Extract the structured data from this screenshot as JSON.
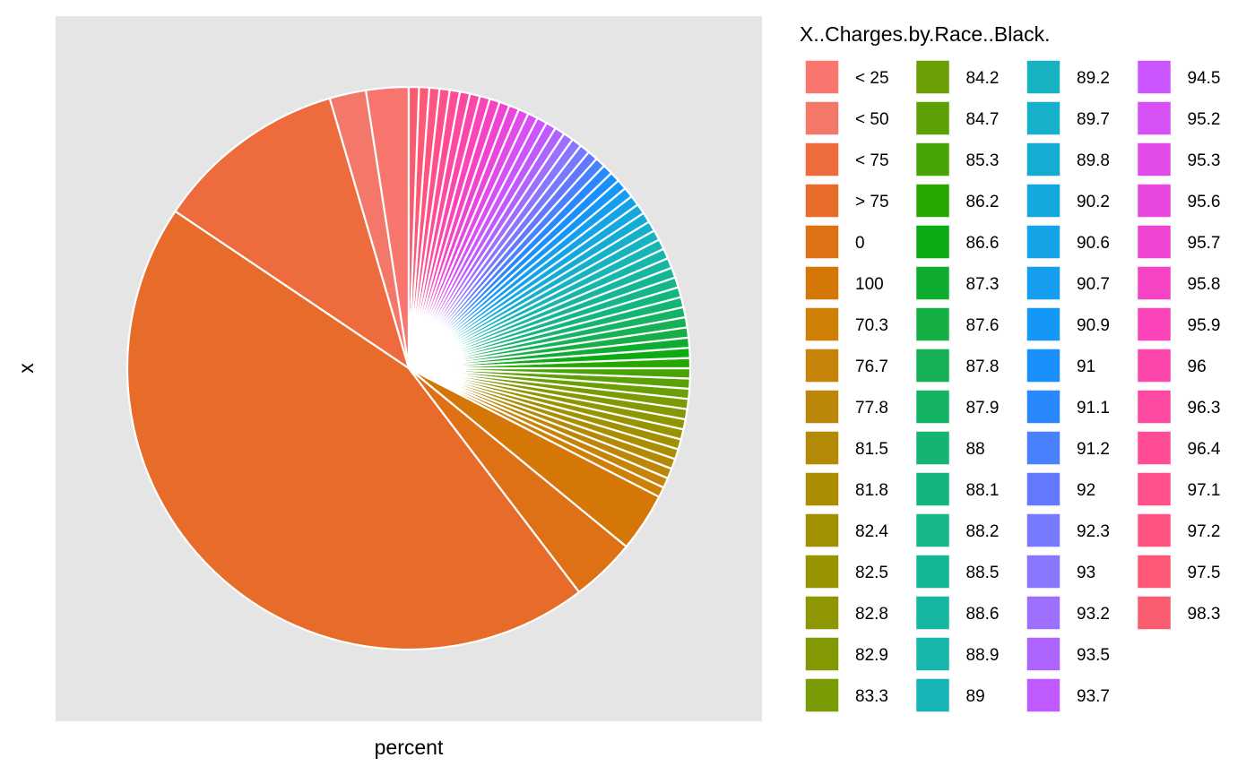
{
  "chart_data": {
    "type": "pie",
    "title": "",
    "xlabel": "percent",
    "ylabel": "x",
    "legend_title": "X..Charges.by.Race..Black.",
    "legend_position": "right",
    "grid": false,
    "panel_background": "#E5E5E5",
    "slice_border": "#FFFFFF",
    "slices": [
      {
        "label": "< 25",
        "value": 2.1,
        "color": "#F8766D"
      },
      {
        "label": "< 50",
        "value": 1.8,
        "color": "#F3786A"
      },
      {
        "label": "< 75",
        "value": 9.5,
        "color": "#EE6B3E"
      },
      {
        "label": "> 75",
        "value": 38.5,
        "color": "#E76C29"
      },
      {
        "label": "0",
        "value": 3.2,
        "color": "#DE7016"
      },
      {
        "label": "100",
        "value": 2.9,
        "color": "#D57707"
      },
      {
        "label": "70.3",
        "value": 0.5,
        "color": "#CE7F05"
      },
      {
        "label": "76.7",
        "value": 0.5,
        "color": "#C58307"
      },
      {
        "label": "77.8",
        "value": 0.5,
        "color": "#BC8608"
      },
      {
        "label": "81.5",
        "value": 0.5,
        "color": "#B38A05"
      },
      {
        "label": "81.8",
        "value": 0.5,
        "color": "#AA8D03"
      },
      {
        "label": "82.4",
        "value": 0.5,
        "color": "#A19001"
      },
      {
        "label": "82.5",
        "value": 0.5,
        "color": "#989301"
      },
      {
        "label": "82.8",
        "value": 0.5,
        "color": "#8E9602"
      },
      {
        "label": "82.9",
        "value": 0.5,
        "color": "#849803"
      },
      {
        "label": "83.3",
        "value": 0.5,
        "color": "#7A9B04"
      },
      {
        "label": "84.2",
        "value": 0.5,
        "color": "#6C9E05"
      },
      {
        "label": "84.7",
        "value": 0.5,
        "color": "#5CA105"
      },
      {
        "label": "85.3",
        "value": 0.5,
        "color": "#48A404"
      },
      {
        "label": "86.2",
        "value": 0.5,
        "color": "#28A702"
      },
      {
        "label": "86.6",
        "value": 0.5,
        "color": "#0CAA13"
      },
      {
        "label": "87.3",
        "value": 0.5,
        "color": "#0EAD30"
      },
      {
        "label": "87.6",
        "value": 0.5,
        "color": "#15AF45"
      },
      {
        "label": "87.8",
        "value": 0.5,
        "color": "#16B156"
      },
      {
        "label": "87.9",
        "value": 0.5,
        "color": "#15B465"
      },
      {
        "label": "88",
        "value": 0.5,
        "color": "#14B572"
      },
      {
        "label": "88.1",
        "value": 0.5,
        "color": "#13B67E"
      },
      {
        "label": "88.2",
        "value": 0.5,
        "color": "#14B68A"
      },
      {
        "label": "88.5",
        "value": 0.5,
        "color": "#15B695"
      },
      {
        "label": "88.6",
        "value": 0.5,
        "color": "#16B6A0"
      },
      {
        "label": "88.9",
        "value": 0.5,
        "color": "#17B6AB"
      },
      {
        "label": "89",
        "value": 0.5,
        "color": "#18B5B6"
      },
      {
        "label": "89.2",
        "value": 0.5,
        "color": "#18B3C0"
      },
      {
        "label": "89.7",
        "value": 0.5,
        "color": "#16B0CA"
      },
      {
        "label": "89.8",
        "value": 0.5,
        "color": "#15ACD4"
      },
      {
        "label": "90.2",
        "value": 0.5,
        "color": "#15A8DE"
      },
      {
        "label": "90.6",
        "value": 0.5,
        "color": "#15A3E7"
      },
      {
        "label": "90.7",
        "value": 0.5,
        "color": "#159EF0"
      },
      {
        "label": "90.9",
        "value": 0.5,
        "color": "#1597F7"
      },
      {
        "label": "91",
        "value": 0.5,
        "color": "#1A90FD"
      },
      {
        "label": "91.1",
        "value": 0.5,
        "color": "#2A88FF"
      },
      {
        "label": "91.2",
        "value": 0.5,
        "color": "#4A81FF"
      },
      {
        "label": "92",
        "value": 0.5,
        "color": "#6279FF"
      },
      {
        "label": "92.3",
        "value": 0.5,
        "color": "#777AFF"
      },
      {
        "label": "93",
        "value": 0.5,
        "color": "#8A77FF"
      },
      {
        "label": "93.2",
        "value": 0.5,
        "color": "#9C6FFF"
      },
      {
        "label": "93.5",
        "value": 0.5,
        "color": "#AE65FF"
      },
      {
        "label": "93.7",
        "value": 0.5,
        "color": "#BE5AFF"
      },
      {
        "label": "94.5",
        "value": 0.5,
        "color": "#CB55FF"
      },
      {
        "label": "95.2",
        "value": 0.5,
        "color": "#D650F5"
      },
      {
        "label": "95.3",
        "value": 0.5,
        "color": "#E04BE9"
      },
      {
        "label": "95.6",
        "value": 0.5,
        "color": "#E847DD"
      },
      {
        "label": "95.7",
        "value": 0.5,
        "color": "#EF44D1"
      },
      {
        "label": "95.8",
        "value": 0.5,
        "color": "#F543C4"
      },
      {
        "label": "95.9",
        "value": 0.5,
        "color": "#FA44B8"
      },
      {
        "label": "96",
        "value": 0.5,
        "color": "#FD46AC"
      },
      {
        "label": "96.3",
        "value": 0.5,
        "color": "#FE49A0"
      },
      {
        "label": "96.4",
        "value": 0.5,
        "color": "#FF4C94"
      },
      {
        "label": "97.1",
        "value": 0.5,
        "color": "#FF5089"
      },
      {
        "label": "97.2",
        "value": 0.5,
        "color": "#FF547F"
      },
      {
        "label": "97.5",
        "value": 0.5,
        "color": "#FE5876"
      },
      {
        "label": "98.3",
        "value": 0.5,
        "color": "#F85C6E"
      }
    ]
  }
}
